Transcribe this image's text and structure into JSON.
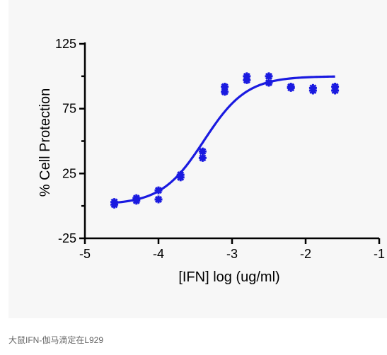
{
  "caption": "大鼠IFN-伽马滴定在L929",
  "chart_data": {
    "type": "scatter",
    "title": "",
    "xlabel": "[IFN] log (ug/ml)",
    "ylabel": "% Cell Protection",
    "xlim": [
      -5,
      -1
    ],
    "ylim": [
      -25,
      125
    ],
    "xticks": [
      -5,
      -4,
      -3,
      -2,
      -1
    ],
    "yticks": [
      -25,
      25,
      75,
      125
    ],
    "xtick_labels": [
      "-5",
      "-4",
      "-3",
      "-2",
      "-1"
    ],
    "ytick_labels": [
      "-25",
      "25",
      "75",
      "125"
    ],
    "grid": false,
    "color": "#1a1ae0",
    "series": [
      {
        "points": [
          [
            -4.6,
            1
          ],
          [
            -4.6,
            3
          ],
          [
            -4.3,
            4
          ],
          [
            -4.3,
            6
          ],
          [
            -4.0,
            5
          ],
          [
            -4.0,
            12
          ],
          [
            -3.7,
            22
          ],
          [
            -3.7,
            24
          ],
          [
            -3.4,
            37
          ],
          [
            -3.4,
            42
          ],
          [
            -3.1,
            88
          ],
          [
            -3.1,
            92
          ],
          [
            -2.8,
            97
          ],
          [
            -2.8,
            100
          ],
          [
            -2.5,
            95
          ],
          [
            -2.5,
            100
          ],
          [
            -2.2,
            91
          ],
          [
            -2.2,
            92
          ],
          [
            -1.9,
            89
          ],
          [
            -1.9,
            91
          ],
          [
            -1.6,
            89
          ],
          [
            -1.6,
            92
          ]
        ],
        "fit": {
          "bottom": 1,
          "top": 100,
          "logEC50": -3.38,
          "hill": 1.5,
          "x_range": [
            -4.6,
            -1.6
          ]
        }
      }
    ]
  }
}
